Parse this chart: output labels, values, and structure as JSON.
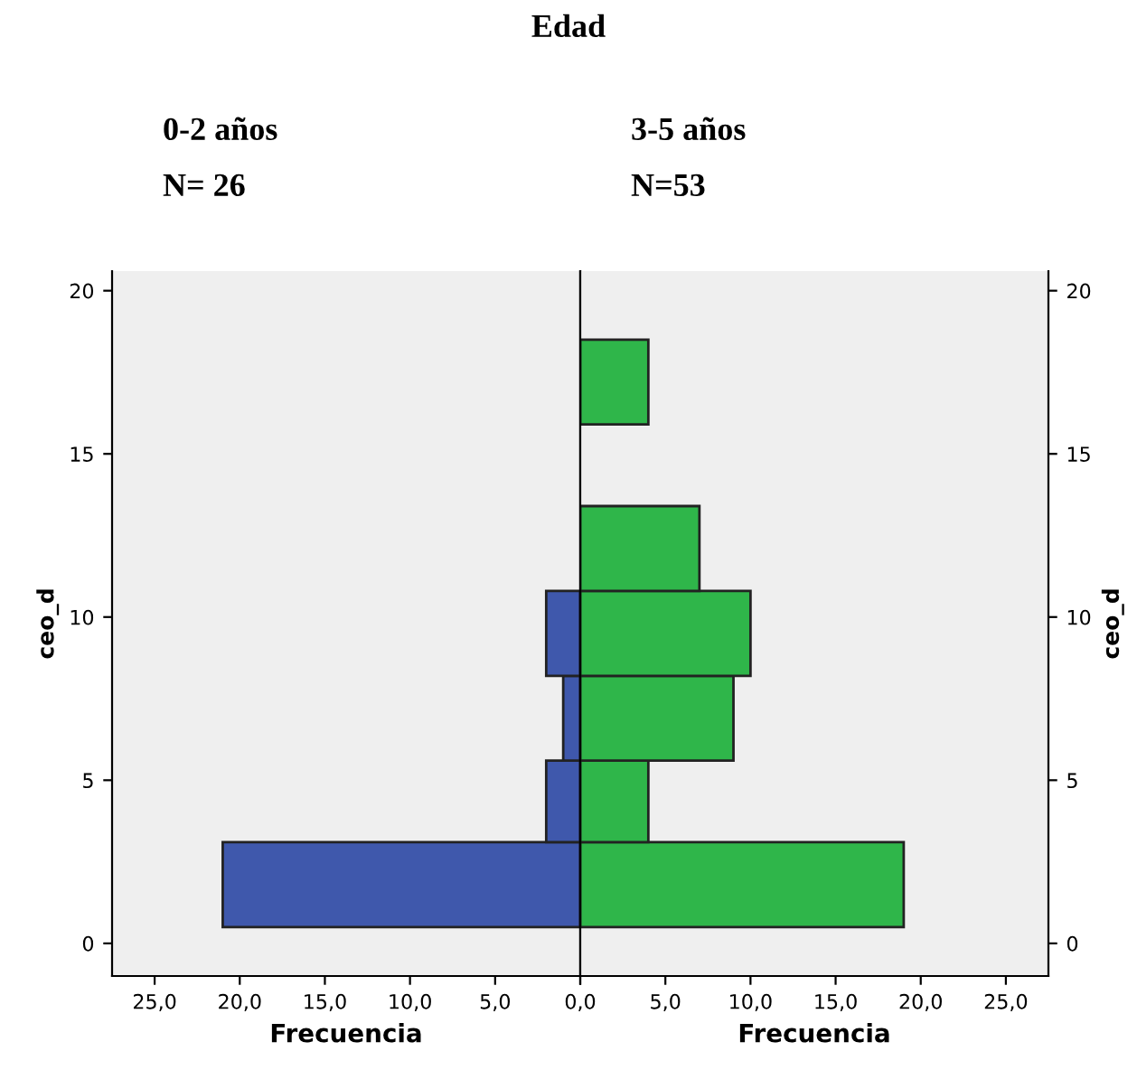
{
  "chart_data": [
    {
      "type": "histogram",
      "orientation": "horizontal",
      "title": "0-2 años",
      "subtitle": "N= 26",
      "annotations": [
        "Edad"
      ],
      "xlabel": "Frecuencia",
      "ylabel": "ceo_d",
      "bins": [
        0.5,
        3.1,
        5.6,
        8.2,
        10.8
      ],
      "values": [
        21,
        2,
        1,
        2
      ],
      "color": "#3f58ac",
      "xlim": [
        27.5,
        0
      ],
      "xticks": [
        {
          "value": 25,
          "label": "25,0"
        },
        {
          "value": 20,
          "label": "20,0"
        },
        {
          "value": 15,
          "label": "15,0"
        },
        {
          "value": 10,
          "label": "10,0"
        },
        {
          "value": 5,
          "label": "5,0"
        },
        {
          "value": 0,
          "label": "0,0"
        }
      ],
      "ylim": [
        -1,
        20.6
      ],
      "yticks": [
        0,
        5,
        10,
        15,
        20
      ]
    },
    {
      "type": "histogram",
      "orientation": "horizontal",
      "title": "3-5 años",
      "subtitle": "N=53",
      "xlabel": "Frecuencia",
      "ylabel": "ceo_d",
      "bins": [
        0.5,
        3.1,
        5.6,
        8.2,
        10.8,
        13.4,
        15.9,
        18.5
      ],
      "values": [
        19,
        4,
        9,
        10,
        7,
        0,
        4
      ],
      "color": "#2fb64a",
      "xlim": [
        0,
        27.5
      ],
      "xticks": [
        {
          "value": 0,
          "label": null
        },
        {
          "value": 5,
          "label": "5,0"
        },
        {
          "value": 10,
          "label": "10,0"
        },
        {
          "value": 15,
          "label": "15,0"
        },
        {
          "value": 20,
          "label": "20,0"
        },
        {
          "value": 25,
          "label": "25,0"
        }
      ],
      "ylim": [
        -1,
        20.6
      ],
      "yticks": [
        0,
        5,
        10,
        15,
        20
      ]
    }
  ]
}
